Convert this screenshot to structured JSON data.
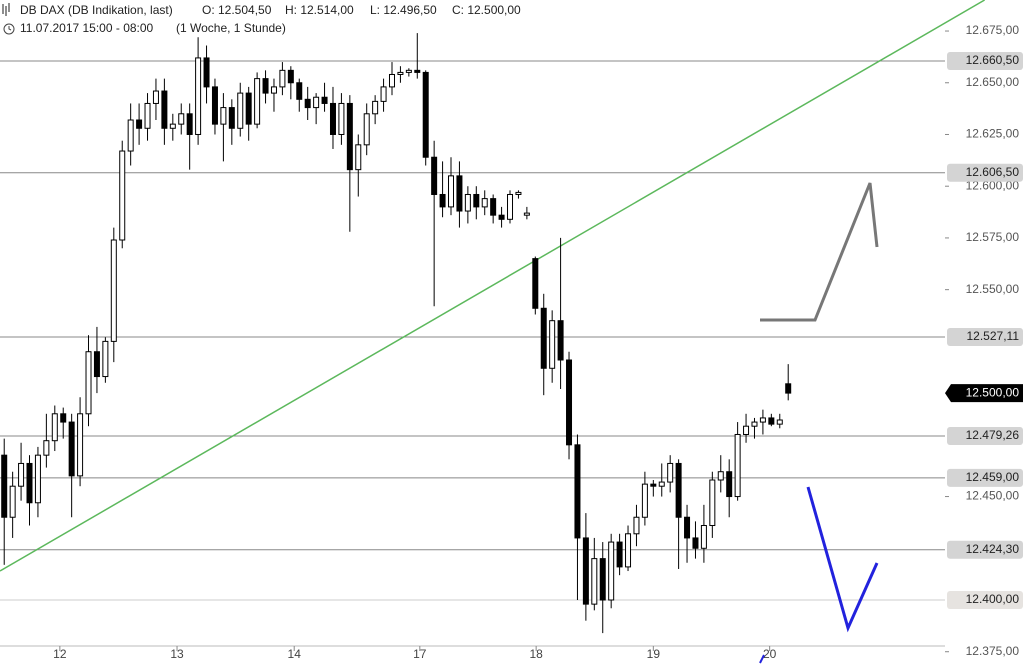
{
  "chart_data": {
    "type": "candlestick",
    "header": {
      "title": "DB DAX (DB Indikation, last)",
      "ohlc": [
        "O: 12.504,50",
        "H: 12.514,00",
        "L: 12.496,50",
        "C: 12.500,00"
      ],
      "date": "11.07.2017 15:00 - 08:00",
      "period": "(1 Woche, 1 Stunde)"
    },
    "up_color": "#ffffff",
    "down_color": "#000000",
    "open": [
      12470,
      12440,
      12455,
      12466,
      12447,
      12470,
      12477,
      12490,
      12486,
      12460,
      12490,
      12520,
      12508,
      12525,
      12574,
      12617,
      12632,
      12628,
      12640,
      12646,
      12628,
      12630,
      12635,
      12625,
      12662,
      12648,
      12630,
      12638,
      12628,
      12645,
      12630,
      12652,
      12645,
      12648,
      12656,
      12650,
      12642,
      12638,
      12643,
      12640,
      12625,
      12640,
      12608,
      12620,
      12635,
      12641,
      12648,
      12654,
      12655,
      12656,
      12655,
      12614,
      12596,
      12590,
      12605,
      12588,
      12596,
      12590,
      12594,
      12586,
      12584,
      12596,
      12586,
      12565,
      12541,
      12512,
      12535,
      12516,
      12475,
      12430,
      12398,
      12420,
      12400,
      12428,
      12416,
      12432,
      12440,
      12456,
      12455,
      12457,
      12466,
      12440,
      12430,
      12425,
      12436,
      12458,
      12462,
      12450,
      12480,
      12484,
      12486,
      12488,
      12485,
      12504.5
    ],
    "high": [
      12478,
      12462,
      12476,
      12470,
      12474,
      12490,
      12494,
      12493,
      12490,
      12498,
      12528,
      12532,
      12527,
      12580,
      12622,
      12640,
      12640,
      12645,
      12652,
      12652,
      12635,
      12640,
      12640,
      12672,
      12668,
      12652,
      12645,
      12642,
      12650,
      12648,
      12655,
      12656,
      12652,
      12660,
      12658,
      12652,
      12648,
      12645,
      12650,
      12648,
      12645,
      12644,
      12625,
      12640,
      12644,
      12652,
      12660,
      12658,
      12657,
      12674,
      12656,
      12622,
      12612,
      12614,
      12612,
      12600,
      12600,
      12598,
      12596,
      12590,
      12598,
      12598,
      12590,
      12566,
      12548,
      12540,
      12575,
      12520,
      12480,
      12442,
      12430,
      12428,
      12432,
      12432,
      12436,
      12446,
      12462,
      12458,
      12466,
      12470,
      12468,
      12446,
      12438,
      12446,
      12462,
      12470,
      12468,
      12486,
      12490,
      12488,
      12492,
      12490,
      12490,
      12514
    ],
    "low": [
      12417,
      12430,
      12448,
      12436,
      12440,
      12464,
      12472,
      12478,
      12440,
      12455,
      12484,
      12500,
      12505,
      12515,
      12570,
      12610,
      12620,
      12622,
      12632,
      12620,
      12622,
      12625,
      12608,
      12620,
      12640,
      12625,
      12612,
      12620,
      12624,
      12622,
      12628,
      12640,
      12636,
      12644,
      12642,
      12636,
      12632,
      12630,
      12636,
      12618,
      12620,
      12578,
      12595,
      12615,
      12630,
      12636,
      12644,
      12650,
      12653,
      12652,
      12610,
      12542,
      12585,
      12586,
      12580,
      12582,
      12584,
      12586,
      12582,
      12580,
      12582,
      12594,
      12584,
      12538,
      12499,
      12505,
      12502,
      12468,
      12400,
      12390,
      12395,
      12384,
      12396,
      12412,
      12414,
      12426,
      12436,
      12450,
      12450,
      12452,
      12415,
      12418,
      12420,
      12418,
      12430,
      12452,
      12440,
      12448,
      12476,
      12478,
      12480,
      12484,
      12483,
      12496.5
    ],
    "close": [
      12440,
      12455,
      12466,
      12447,
      12470,
      12477,
      12490,
      12486,
      12460,
      12490,
      12520,
      12508,
      12525,
      12574,
      12617,
      12632,
      12628,
      12640,
      12646,
      12628,
      12630,
      12635,
      12625,
      12662,
      12648,
      12630,
      12638,
      12628,
      12645,
      12630,
      12652,
      12645,
      12648,
      12656,
      12650,
      12642,
      12638,
      12643,
      12640,
      12625,
      12640,
      12608,
      12620,
      12635,
      12641,
      12648,
      12654,
      12655,
      12656,
      12655,
      12614,
      12596,
      12590,
      12605,
      12588,
      12596,
      12590,
      12594,
      12586,
      12584,
      12596,
      12597,
      12587,
      12541,
      12512,
      12535,
      12516,
      12475,
      12430,
      12398,
      12420,
      12400,
      12428,
      12416,
      12432,
      12440,
      12456,
      12455,
      12457,
      12466,
      12440,
      12430,
      12425,
      12436,
      12458,
      12462,
      12450,
      12480,
      12484,
      12486,
      12488,
      12485,
      12487,
      12500
    ],
    "xlim": [
      -0.5,
      111.6
    ],
    "xticks": [
      {
        "value": 6.6,
        "label": "12"
      },
      {
        "value": 20.5,
        "label": "13"
      },
      {
        "value": 34.4,
        "label": "14"
      },
      {
        "value": 49.3,
        "label": "17"
      },
      {
        "value": 63.1,
        "label": "18"
      },
      {
        "value": 77,
        "label": "19"
      },
      {
        "value": 90.8,
        "label": "20"
      }
    ],
    "ylim": [
      12371,
      12690
    ],
    "yticks": [
      {
        "value": 12675,
        "label": "12.675,00"
      },
      {
        "value": 12650,
        "label": "12.650,00"
      },
      {
        "value": 12625,
        "label": "12.625,00"
      },
      {
        "value": 12600,
        "label": "12.600,00"
      },
      {
        "value": 12575,
        "label": "12.575,00"
      },
      {
        "value": 12550,
        "label": "12.550,00"
      },
      {
        "value": 12450,
        "label": "12.450,00"
      },
      {
        "value": 12375,
        "label": "12.375,00"
      }
    ],
    "levels": [
      {
        "value": 12660.5,
        "label": "12.660,50",
        "color": "#d4d4d4"
      },
      {
        "value": 12606.5,
        "label": "12.606,50",
        "color": "#d4d4d4"
      },
      {
        "value": 12527.11,
        "label": "12.527,11",
        "color": "#d4d4d4"
      },
      {
        "value": 12479.26,
        "label": "12.479,26",
        "color": "#d4d4d4"
      },
      {
        "value": 12459,
        "label": "12.459,00",
        "color": "#d4d4d4"
      },
      {
        "value": 12424.3,
        "label": "12.424,30",
        "color": "#d4d4d4"
      },
      {
        "value": 12400,
        "label": "12.400,00",
        "color": "#e6e3e0"
      }
    ],
    "last": {
      "value": 12500,
      "label": "12.500,00",
      "color": "#000000"
    },
    "trendline": {
      "color": "#5cb85c",
      "points": [
        [
          -0.5,
          12414
        ],
        [
          116.3,
          12690
        ]
      ]
    }
  }
}
